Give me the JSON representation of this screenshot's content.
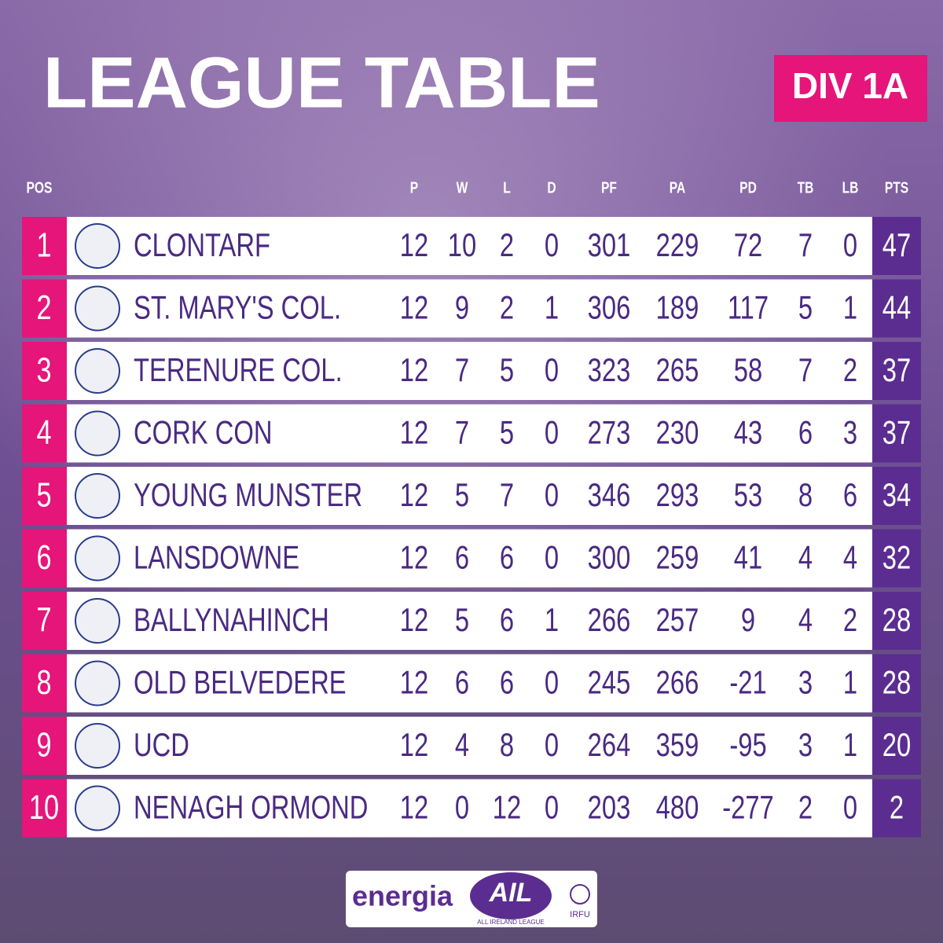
{
  "header": {
    "title": "LEAGUE TABLE",
    "badge": "DIV 1A"
  },
  "table": {
    "pos_column": "POS",
    "columns": [
      "P",
      "W",
      "L",
      "D",
      "PF",
      "PA",
      "PD",
      "TB",
      "LB",
      "PTS"
    ],
    "rows": [
      [
        1,
        "CLONTARF",
        12,
        10,
        2,
        0,
        301,
        229,
        72,
        7,
        0,
        47
      ],
      [
        2,
        "ST. MARY'S COL.",
        12,
        9,
        2,
        1,
        306,
        189,
        117,
        5,
        1,
        44
      ],
      [
        3,
        "TERENURE COL.",
        12,
        7,
        5,
        0,
        323,
        265,
        58,
        7,
        2,
        37
      ],
      [
        4,
        "CORK CON",
        12,
        7,
        5,
        0,
        273,
        230,
        43,
        6,
        3,
        37
      ],
      [
        5,
        "YOUNG MUNSTER",
        12,
        5,
        7,
        0,
        346,
        293,
        53,
        8,
        6,
        34
      ],
      [
        6,
        "LANSDOWNE",
        12,
        6,
        6,
        0,
        300,
        259,
        41,
        4,
        4,
        32
      ],
      [
        7,
        "BALLYNAHINCH",
        12,
        5,
        6,
        1,
        266,
        257,
        9,
        4,
        2,
        28
      ],
      [
        8,
        "OLD BELVEDERE",
        12,
        6,
        6,
        0,
        245,
        266,
        -21,
        3,
        1,
        28
      ],
      [
        9,
        "UCD",
        12,
        4,
        8,
        0,
        264,
        359,
        -95,
        3,
        1,
        20
      ],
      [
        10,
        "NENAGH ORMOND",
        12,
        0,
        12,
        0,
        203,
        480,
        -277,
        2,
        0,
        2
      ]
    ]
  },
  "footer": {
    "sponsor": "energia",
    "league": "AIL",
    "league_full": "ALL IRELAND LEAGUE",
    "union": "IRFU"
  }
}
